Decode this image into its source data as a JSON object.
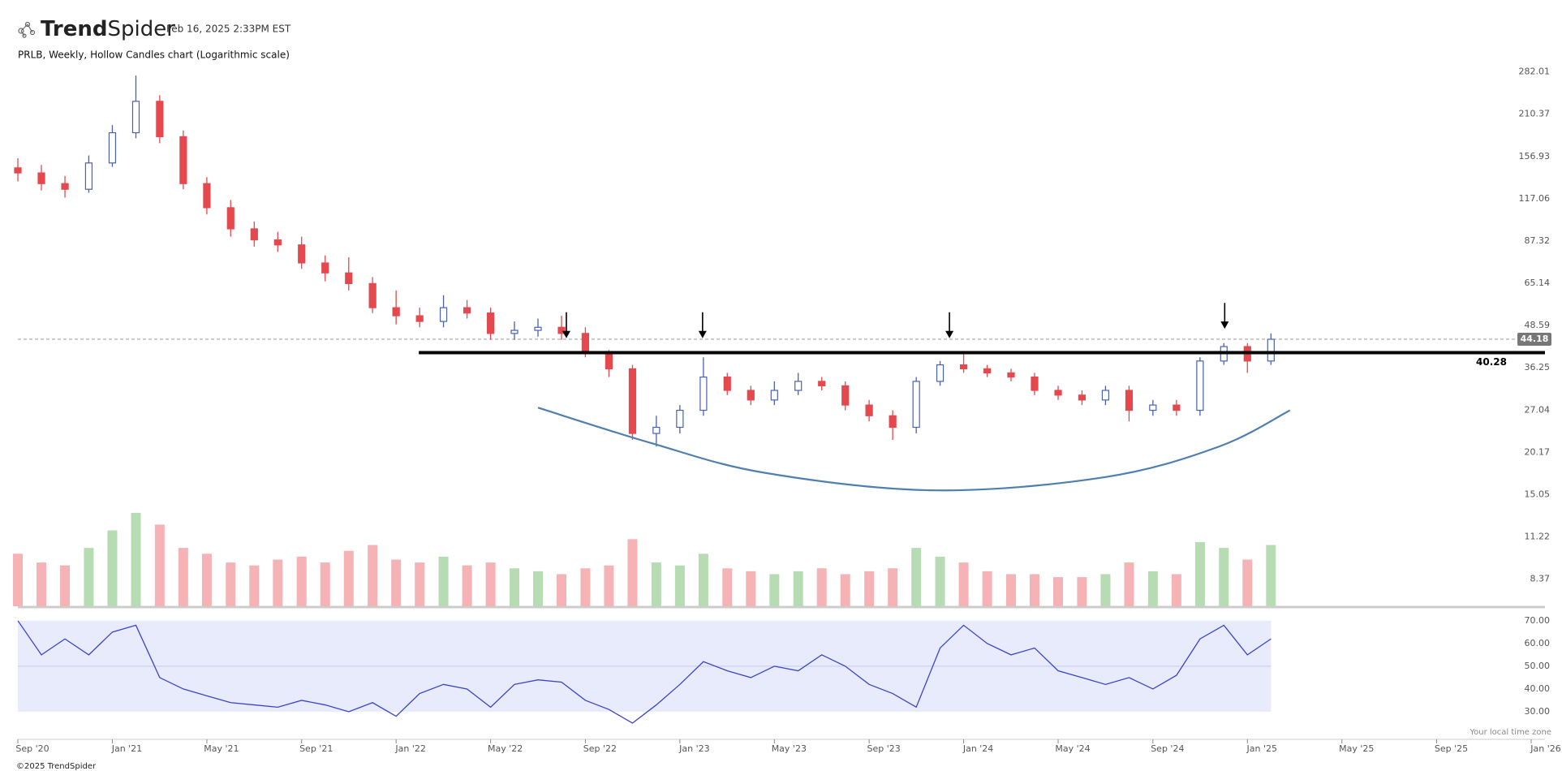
{
  "header": {
    "brand_bold": "Trend",
    "brand_light": "Spider",
    "timestamp": "Feb 16, 2025 2:33PM EST",
    "subtitle": "PRLB, Weekly, Hollow Candles chart (Logarithmic scale)",
    "local_time_note": "Your local time zone"
  },
  "footer": "©2025 TrendSpider",
  "chart_data": [
    {
      "type": "candlestick",
      "log_scale": true,
      "up_color": "#4a61b0",
      "down_color": "#e5484d",
      "volume_up_color": "#b7dbb3",
      "volume_down_color": "#f5b3b6",
      "x": [
        2020.667,
        2020.75,
        2020.833,
        2020.917,
        2021.0,
        2021.083,
        2021.167,
        2021.25,
        2021.333,
        2021.417,
        2021.5,
        2021.583,
        2021.667,
        2021.75,
        2021.833,
        2021.917,
        2022.0,
        2022.083,
        2022.167,
        2022.25,
        2022.333,
        2022.417,
        2022.5,
        2022.583,
        2022.667,
        2022.75,
        2022.833,
        2022.917,
        2023.0,
        2023.083,
        2023.167,
        2023.25,
        2023.333,
        2023.417,
        2023.5,
        2023.583,
        2023.667,
        2023.75,
        2023.833,
        2023.917,
        2024.0,
        2024.083,
        2024.167,
        2024.25,
        2024.333,
        2024.417,
        2024.5,
        2024.583,
        2024.667,
        2024.75,
        2024.833,
        2024.917,
        2025.0,
        2025.083
      ],
      "open": [
        145,
        140,
        130,
        125,
        150,
        185,
        230,
        180,
        130,
        110,
        95,
        88,
        85,
        75,
        70,
        65,
        55,
        52,
        50,
        55,
        53,
        46,
        47,
        48,
        46,
        40,
        36,
        23,
        24,
        27,
        34,
        31,
        29,
        31,
        33,
        32,
        28,
        26,
        24,
        33,
        37,
        36,
        35,
        34,
        31,
        30,
        29,
        31,
        27,
        28,
        27,
        38,
        42,
        38
      ],
      "high": [
        155,
        148,
        137,
        158,
        195,
        275,
        240,
        188,
        136,
        116,
        100,
        93,
        90,
        79,
        78,
        68,
        62,
        55,
        60,
        58,
        55,
        50,
        51,
        52,
        48,
        41,
        37,
        26,
        28,
        39,
        35,
        32,
        33,
        35,
        34,
        33,
        29,
        27,
        34,
        38,
        40,
        37,
        36,
        35,
        32,
        31,
        32,
        32,
        29,
        29,
        39,
        43,
        43,
        46
      ],
      "low": [
        132,
        124,
        118,
        122,
        146,
        178,
        172,
        125,
        105,
        90,
        84,
        81,
        72,
        66,
        62,
        53,
        49,
        48,
        48,
        51,
        44,
        44,
        45,
        44,
        39,
        34,
        22,
        21,
        23,
        26,
        30,
        28,
        28,
        30,
        31,
        27,
        25,
        22,
        23,
        32,
        35,
        34,
        33,
        30,
        29,
        28,
        28,
        25,
        26,
        26,
        26,
        37,
        35,
        37
      ],
      "close": [
        140,
        130,
        125,
        150,
        185,
        230,
        180,
        130,
        110,
        95,
        88,
        85,
        75,
        70,
        65,
        55,
        52,
        50,
        55,
        53,
        46,
        47,
        48,
        46,
        40,
        36,
        23,
        24,
        27,
        34,
        31,
        29,
        31,
        33,
        32,
        28,
        26,
        24,
        33,
        37,
        36,
        35,
        34,
        31,
        30,
        29,
        31,
        27,
        28,
        27,
        38,
        42,
        38,
        44.18
      ],
      "volume": [
        180,
        150,
        140,
        200,
        260,
        320,
        280,
        200,
        180,
        150,
        140,
        160,
        170,
        150,
        190,
        210,
        160,
        150,
        170,
        140,
        150,
        130,
        120,
        110,
        130,
        140,
        230,
        150,
        140,
        180,
        130,
        120,
        110,
        120,
        130,
        110,
        120,
        130,
        200,
        170,
        150,
        120,
        110,
        110,
        100,
        100,
        110,
        150,
        120,
        110,
        220,
        200,
        160,
        210
      ],
      "xlim": [
        2020.667,
        2026.0
      ],
      "ylim": [
        6.94,
        296
      ],
      "yticks": [
        282.01,
        210.37,
        156.93,
        117.06,
        87.32,
        65.14,
        48.59,
        36.25,
        27.04,
        20.17,
        15.05,
        11.22,
        8.37
      ],
      "level": 40.28,
      "level_start": 2022.08,
      "last_price": 44.18,
      "arrows": [
        {
          "x": 2022.6,
          "y": 44.5
        },
        {
          "x": 2023.08,
          "y": 44.5
        },
        {
          "x": 2023.95,
          "y": 44.5
        },
        {
          "x": 2024.92,
          "y": 47.5
        }
      ],
      "curve": {
        "x": [
          2022.5,
          2022.9,
          2023.3,
          2023.9,
          2024.5,
          2024.9,
          2025.15
        ],
        "y": [
          27.5,
          21.5,
          17.5,
          15.5,
          17.0,
          21,
          27
        ],
        "color": "#4f7fb0"
      }
    },
    {
      "type": "line",
      "color": "#3b44c8",
      "band": [
        30,
        70
      ],
      "band_color": "#e8ebfb",
      "midline": 50,
      "x": [
        2020.667,
        2020.75,
        2020.833,
        2020.917,
        2021.0,
        2021.083,
        2021.167,
        2021.25,
        2021.333,
        2021.417,
        2021.5,
        2021.583,
        2021.667,
        2021.75,
        2021.833,
        2021.917,
        2022.0,
        2022.083,
        2022.167,
        2022.25,
        2022.333,
        2022.417,
        2022.5,
        2022.583,
        2022.667,
        2022.75,
        2022.833,
        2022.917,
        2023.0,
        2023.083,
        2023.167,
        2023.25,
        2023.333,
        2023.417,
        2023.5,
        2023.583,
        2023.667,
        2023.75,
        2023.833,
        2023.917,
        2024.0,
        2024.083,
        2024.167,
        2024.25,
        2024.333,
        2024.417,
        2024.5,
        2024.583,
        2024.667,
        2024.75,
        2024.833,
        2024.917,
        2025.0,
        2025.083
      ],
      "values": [
        70,
        55,
        62,
        55,
        65,
        68,
        45,
        40,
        37,
        34,
        33,
        32,
        35,
        33,
        30,
        34,
        28,
        38,
        42,
        40,
        32,
        42,
        44,
        43,
        35,
        31,
        25,
        33,
        42,
        52,
        48,
        45,
        50,
        48,
        55,
        50,
        42,
        38,
        32,
        58,
        68,
        60,
        55,
        58,
        48,
        45,
        42,
        45,
        40,
        46,
        62,
        68,
        55,
        62
      ],
      "xlim": [
        2020.667,
        2026.0
      ],
      "ylim": [
        22.5,
        73.5
      ],
      "yticks": [
        {
          "value": 70,
          "label": "70.00"
        },
        {
          "value": 60,
          "label": "60.00"
        },
        {
          "value": 50,
          "label": "50.00"
        },
        {
          "value": 40,
          "label": "40.00"
        },
        {
          "value": 30,
          "label": "30.00"
        }
      ],
      "xticks": [
        {
          "value": 2020.667,
          "label": "Sep '20"
        },
        {
          "value": 2021.0,
          "label": "Jan '21"
        },
        {
          "value": 2021.333,
          "label": "May '21"
        },
        {
          "value": 2021.667,
          "label": "Sep '21"
        },
        {
          "value": 2022.0,
          "label": "Jan '22"
        },
        {
          "value": 2022.333,
          "label": "May '22"
        },
        {
          "value": 2022.667,
          "label": "Sep '22"
        },
        {
          "value": 2023.0,
          "label": "Jan '23"
        },
        {
          "value": 2023.333,
          "label": "May '23"
        },
        {
          "value": 2023.667,
          "label": "Sep '23"
        },
        {
          "value": 2024.0,
          "label": "Jan '24"
        },
        {
          "value": 2024.333,
          "label": "May '24"
        },
        {
          "value": 2024.667,
          "label": "Sep '24"
        },
        {
          "value": 2025.0,
          "label": "Jan '25"
        },
        {
          "value": 2025.333,
          "label": "May '25"
        },
        {
          "value": 2025.667,
          "label": "Sep '25"
        },
        {
          "value": 2026.0,
          "label": "Jan '26"
        }
      ]
    }
  ]
}
